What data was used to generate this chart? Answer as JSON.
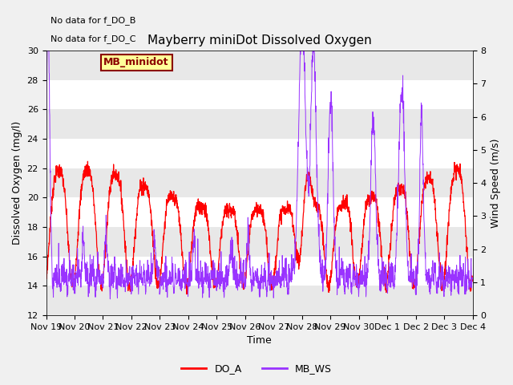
{
  "title": "Mayberry miniDot Dissolved Oxygen",
  "xlabel": "Time",
  "ylabel_left": "Dissolved Oxygen (mg/l)",
  "ylabel_right": "Wind Speed (m/s)",
  "annotation_lines": [
    "No data for f_DO_B",
    "No data for f_DO_C"
  ],
  "legend_label": "MB_minidot",
  "legend_line1": "DO_A",
  "legend_line2": "MB_WS",
  "color_DO_A": "#ff0000",
  "color_MB_WS": "#9933ff",
  "color_legend_box_bg": "#ffff99",
  "color_legend_box_border": "#8b0000",
  "ylim_left": [
    12,
    30
  ],
  "ylim_right": [
    0.0,
    8.0
  ],
  "yticks_left": [
    12,
    14,
    16,
    18,
    20,
    22,
    24,
    26,
    28,
    30
  ],
  "yticks_right": [
    0.0,
    1.0,
    2.0,
    3.0,
    4.0,
    5.0,
    6.0,
    7.0,
    8.0
  ],
  "bg_color": "#e8e8e8",
  "band_color": "#d0d0d0",
  "fig_bg": "#f0f0f0",
  "num_points": 2000,
  "seed": 7
}
